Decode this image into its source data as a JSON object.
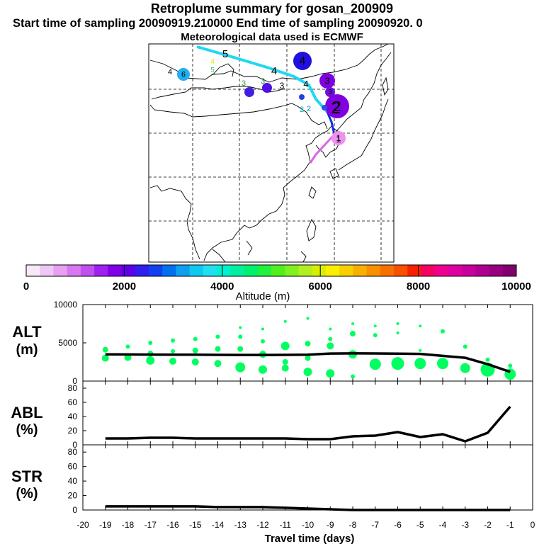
{
  "header": {
    "title": "Retroplume summary for gosan_200909",
    "sampling": "Start time of sampling 20090919.210000     End time of sampling 20090920.     0",
    "met": "Meteorological data used is ECMWF"
  },
  "colors": {
    "trajectory_main": "#20d8f0",
    "trajectory_mid": "#1030e8",
    "trajectory_start": "#e060e8",
    "green_cluster": "#00ff60",
    "line": "#000000"
  },
  "map": {
    "labels": [
      {
        "t": "5",
        "size": 15,
        "color": "#000000"
      },
      {
        "t": "4",
        "size": 15,
        "color": "#000000"
      },
      {
        "t": "4",
        "size": 13,
        "color": "#000000"
      },
      {
        "t": "4",
        "size": 11,
        "color": "#000000"
      },
      {
        "t": "4",
        "size": 10,
        "color": "#f0e000"
      },
      {
        "t": "5",
        "size": 10,
        "color": "#40c060"
      },
      {
        "t": "3",
        "size": 11,
        "color": "#30a040"
      },
      {
        "t": "3",
        "size": 11,
        "color": "#208040"
      },
      {
        "t": "3",
        "size": 12,
        "color": "#000000"
      },
      {
        "t": "2",
        "size": 11,
        "color": "#00c0c0"
      },
      {
        "t": "2",
        "size": 11,
        "color": "#00a0c0"
      },
      {
        "t": "2",
        "size": 24,
        "color": "#000000"
      },
      {
        "t": "1",
        "size": 13,
        "color": "#000000"
      }
    ],
    "circles": [
      {
        "label": "4",
        "color": "#2010e0"
      },
      {
        "label": "3",
        "color": "#8000e0"
      },
      {
        "label": "3",
        "color": "#7010e0"
      },
      {
        "label": "2",
        "color": "#8000e0"
      },
      {
        "label": "6",
        "color": "#20b0f0"
      },
      {
        "label": "1",
        "color": "#f090f0"
      },
      {
        "label": "",
        "color": "#4020e0"
      },
      {
        "label": "",
        "color": "#5010e0"
      },
      {
        "label": "",
        "color": "#2040e0"
      },
      {
        "label": "",
        "color": "#3050e0"
      }
    ]
  },
  "colorbar": {
    "ticks": [
      "0",
      "2000",
      "4000",
      "6000",
      "8000",
      "10000"
    ],
    "label": "Altitude (m)",
    "colors": [
      "#f8e8f8",
      "#f0c8f8",
      "#e8a0f0",
      "#d878f0",
      "#c050f0",
      "#a020f0",
      "#8000e8",
      "#6000e8",
      "#3020f0",
      "#1040f0",
      "#0070f0",
      "#10a0f0",
      "#10c8f0",
      "#20e0f0",
      "#00f0d0",
      "#00f0a0",
      "#00f070",
      "#20f040",
      "#50f020",
      "#80f020",
      "#b0f020",
      "#d8f000",
      "#f8f000",
      "#f8d000",
      "#f8b000",
      "#f89000",
      "#f87000",
      "#f85000",
      "#f82000",
      "#f80060",
      "#f00090",
      "#e000a0",
      "#c800a0",
      "#b00090",
      "#980080",
      "#800070"
    ]
  },
  "panels": {
    "alt": {
      "label_top": "ALT",
      "label_bottom": "(m)",
      "yticks": [
        "10000",
        "5000",
        "0"
      ]
    },
    "abl": {
      "label_top": "ABL",
      "label_bottom": "(%)",
      "yticks": [
        "80",
        "60",
        "40",
        "20",
        "0"
      ]
    },
    "str": {
      "label_top": "STR",
      "label_bottom": "(%)",
      "yticks": [
        "80",
        "60",
        "40",
        "20",
        "0"
      ]
    }
  },
  "chart_data": [
    {
      "type": "line",
      "title": "ALT",
      "ylabel": "ALT (m)",
      "xlim": [
        -20,
        0
      ],
      "ylim": [
        0,
        10000
      ],
      "x": [
        -19,
        -18,
        -17,
        -16,
        -15,
        -14,
        -13,
        -12,
        -11,
        -10,
        -9,
        -8,
        -7,
        -6,
        -5,
        -4,
        -3,
        -2,
        -1
      ],
      "values": [
        3500,
        3480,
        3460,
        3450,
        3440,
        3430,
        3420,
        3420,
        3430,
        3440,
        3600,
        3620,
        3610,
        3580,
        3560,
        3300,
        3050,
        2200,
        1200
      ],
      "cluster_points": [
        {
          "x": -19,
          "y": 4100,
          "r": 4
        },
        {
          "x": -19,
          "y": 3000,
          "r": 5
        },
        {
          "x": -18,
          "y": 4500,
          "r": 3
        },
        {
          "x": -18,
          "y": 3100,
          "r": 5
        },
        {
          "x": -17,
          "y": 5000,
          "r": 3
        },
        {
          "x": -17,
          "y": 3600,
          "r": 4
        },
        {
          "x": -17,
          "y": 2700,
          "r": 6
        },
        {
          "x": -16,
          "y": 5300,
          "r": 3
        },
        {
          "x": -16,
          "y": 3900,
          "r": 3
        },
        {
          "x": -16,
          "y": 2600,
          "r": 5
        },
        {
          "x": -15,
          "y": 5500,
          "r": 3
        },
        {
          "x": -15,
          "y": 4000,
          "r": 4
        },
        {
          "x": -15,
          "y": 2500,
          "r": 5
        },
        {
          "x": -14,
          "y": 5800,
          "r": 3
        },
        {
          "x": -14,
          "y": 4200,
          "r": 4
        },
        {
          "x": -14,
          "y": 2300,
          "r": 5
        },
        {
          "x": -13,
          "y": 7000,
          "r": 2
        },
        {
          "x": -13,
          "y": 5800,
          "r": 3
        },
        {
          "x": -13,
          "y": 4200,
          "r": 4
        },
        {
          "x": -13,
          "y": 1800,
          "r": 7
        },
        {
          "x": -12,
          "y": 6800,
          "r": 2
        },
        {
          "x": -12,
          "y": 5200,
          "r": 3
        },
        {
          "x": -12,
          "y": 3500,
          "r": 5
        },
        {
          "x": -12,
          "y": 1500,
          "r": 6
        },
        {
          "x": -11,
          "y": 7800,
          "r": 2
        },
        {
          "x": -11,
          "y": 4600,
          "r": 6
        },
        {
          "x": -11,
          "y": 2500,
          "r": 4
        },
        {
          "x": -11,
          "y": 1700,
          "r": 5
        },
        {
          "x": -10,
          "y": 8200,
          "r": 2
        },
        {
          "x": -10,
          "y": 4900,
          "r": 4
        },
        {
          "x": -10,
          "y": 3000,
          "r": 4
        },
        {
          "x": -10,
          "y": 1200,
          "r": 6
        },
        {
          "x": -9,
          "y": 6800,
          "r": 2
        },
        {
          "x": -9,
          "y": 5500,
          "r": 3
        },
        {
          "x": -9,
          "y": 4600,
          "r": 5
        },
        {
          "x": -9,
          "y": 1000,
          "r": 6
        },
        {
          "x": -8,
          "y": 7500,
          "r": 2
        },
        {
          "x": -8,
          "y": 6200,
          "r": 4
        },
        {
          "x": -8,
          "y": 3500,
          "r": 6
        },
        {
          "x": -8,
          "y": 600,
          "r": 3
        },
        {
          "x": -7,
          "y": 7200,
          "r": 2
        },
        {
          "x": -7,
          "y": 6000,
          "r": 3
        },
        {
          "x": -7,
          "y": 2200,
          "r": 8
        },
        {
          "x": -6,
          "y": 7500,
          "r": 2
        },
        {
          "x": -6,
          "y": 6300,
          "r": 2
        },
        {
          "x": -6,
          "y": 2300,
          "r": 9
        },
        {
          "x": -5,
          "y": 7200,
          "r": 2
        },
        {
          "x": -5,
          "y": 4000,
          "r": 2
        },
        {
          "x": -5,
          "y": 2300,
          "r": 8
        },
        {
          "x": -4,
          "y": 6500,
          "r": 3
        },
        {
          "x": -4,
          "y": 2300,
          "r": 8
        },
        {
          "x": -3,
          "y": 4500,
          "r": 3
        },
        {
          "x": -3,
          "y": 1700,
          "r": 7
        },
        {
          "x": -2,
          "y": 2800,
          "r": 3
        },
        {
          "x": -2,
          "y": 1500,
          "r": 10
        },
        {
          "x": -1,
          "y": 2000,
          "r": 3
        },
        {
          "x": -1,
          "y": 900,
          "r": 8
        }
      ]
    },
    {
      "type": "line",
      "title": "ABL",
      "ylabel": "ABL (%)",
      "xlim": [
        -20,
        0
      ],
      "ylim": [
        0,
        90
      ],
      "x": [
        -19,
        -18,
        -17,
        -16,
        -15,
        -14,
        -13,
        -12,
        -11,
        -10,
        -9,
        -8,
        -7,
        -6,
        -5,
        -4,
        -3,
        -2,
        -1
      ],
      "values": [
        9,
        9,
        10,
        10,
        9,
        9,
        9,
        9,
        9,
        8,
        8,
        12,
        13,
        18,
        11,
        15,
        5,
        17,
        54
      ]
    },
    {
      "type": "line",
      "title": "STR",
      "ylabel": "STR (%)",
      "xlim": [
        -20,
        0
      ],
      "ylim": [
        0,
        90
      ],
      "x": [
        -19,
        -18,
        -17,
        -16,
        -15,
        -14,
        -13,
        -12,
        -11,
        -10,
        -9,
        -8,
        -7,
        -6,
        -5,
        -4,
        -3,
        -2,
        -1
      ],
      "values": [
        5,
        5,
        5,
        5,
        5,
        4,
        4,
        4,
        3,
        2,
        1,
        0,
        0,
        0,
        0,
        0,
        0,
        0,
        0
      ],
      "xlabel": "Travel time (days)",
      "xticks": [
        "-20",
        "-19",
        "-18",
        "-17",
        "-16",
        "-15",
        "-14",
        "-13",
        "-12",
        "-11",
        "-10",
        "-9",
        "-8",
        "-7",
        "-6",
        "-5",
        "-4",
        "-3",
        "-2",
        "-1",
        "0"
      ]
    }
  ]
}
